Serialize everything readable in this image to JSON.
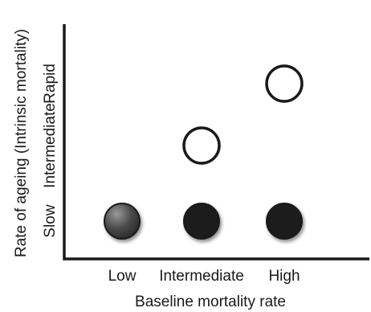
{
  "chart_data": {
    "type": "scatter",
    "xlabel": "Baseline mortality rate",
    "ylabel": "Rate of ageing (Intrinsic mortality)",
    "x_categories": [
      "Low",
      "Intermediate",
      "High"
    ],
    "y_categories": [
      "Slow",
      "Intermediate",
      "Rapid"
    ],
    "points": [
      {
        "x": "Low",
        "y": "Slow",
        "style": "gradient-filled"
      },
      {
        "x": "Intermediate",
        "y": "Slow",
        "style": "filled"
      },
      {
        "x": "High",
        "y": "Slow",
        "style": "filled"
      },
      {
        "x": "Intermediate",
        "y": "Intermediate",
        "style": "open"
      },
      {
        "x": "High",
        "y": "Rapid",
        "style": "open"
      }
    ],
    "grid": false,
    "legend": "none",
    "colors": {
      "axis": "#1a1a1a",
      "filled": "#1a1a1a",
      "open_fill": "#ffffff",
      "open_stroke": "#1a1a1a",
      "gradient_light": "#9a9a9a",
      "gradient_dark": "#2a2a2a"
    }
  }
}
